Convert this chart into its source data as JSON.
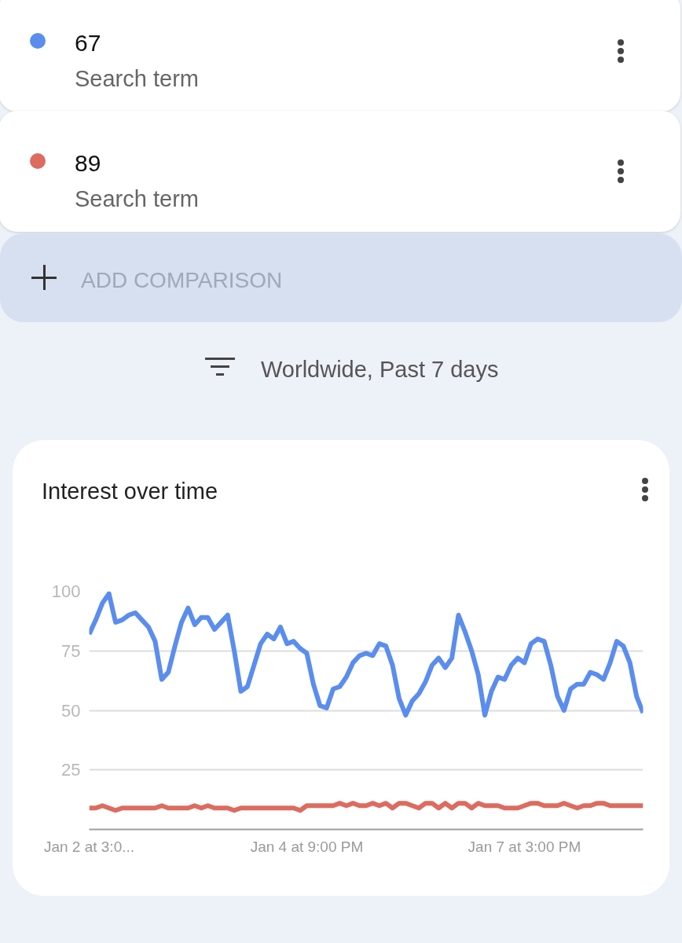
{
  "chart_data": {
    "type": "line",
    "title": "Interest over time",
    "subtitle": "Worldwide, Past 7 days",
    "annotations": [
      "Search term",
      "Search term",
      "ADD COMPARISON"
    ],
    "categories": [
      "Jan 2 at 3:0...",
      null,
      null,
      null,
      null,
      null,
      null,
      null,
      null,
      null,
      null,
      null,
      null,
      null,
      null,
      null,
      null,
      null,
      null,
      null,
      null,
      null,
      null,
      null,
      null,
      null,
      null,
      null,
      null,
      null,
      null,
      null,
      null,
      "Jan 4 at 9:00 PM",
      null,
      null,
      null,
      null,
      null,
      null,
      null,
      null,
      null,
      null,
      null,
      null,
      null,
      null,
      null,
      null,
      null,
      null,
      null,
      null,
      null,
      null,
      null,
      null,
      null,
      null,
      null,
      null,
      null,
      null,
      null,
      null,
      "Jan 7 at 3:00 PM",
      null,
      null,
      null,
      null,
      null,
      null,
      null,
      null,
      null,
      null,
      null,
      null,
      null,
      null,
      null,
      null,
      null,
      null
    ],
    "ylim": [
      0,
      100
    ],
    "yticks": [
      25,
      50,
      75,
      100
    ],
    "grid": "y",
    "legend": "top",
    "marker": "none",
    "line_style": "solid",
    "series": [
      {
        "name": "67",
        "color": "#5a8dee",
        "values": [
          82,
          88,
          95,
          99,
          87,
          88,
          90,
          91,
          88,
          85,
          79,
          63,
          66,
          77,
          87,
          93,
          86,
          89,
          89,
          84,
          87,
          90,
          75,
          58,
          60,
          69,
          78,
          82,
          80,
          85,
          78,
          79,
          76,
          74,
          61,
          52,
          51,
          59,
          60,
          64,
          70,
          73,
          74,
          73,
          78,
          77,
          69,
          55,
          48,
          54,
          57,
          62,
          69,
          72,
          68,
          72,
          90,
          83,
          75,
          65,
          48,
          58,
          64,
          63,
          69,
          72,
          70,
          78,
          80,
          79,
          69,
          56,
          50,
          59,
          61,
          61,
          66,
          65,
          63,
          70,
          79,
          77,
          70,
          56,
          49
        ]
      },
      {
        "name": "89",
        "color": "#dd6b5f",
        "values": [
          9,
          9,
          10,
          9,
          8,
          9,
          9,
          9,
          9,
          9,
          9,
          10,
          9,
          9,
          9,
          9,
          10,
          9,
          10,
          9,
          9,
          9,
          8,
          9,
          9,
          9,
          9,
          9,
          9,
          9,
          9,
          9,
          8,
          10,
          10,
          10,
          10,
          10,
          11,
          10,
          11,
          10,
          10,
          11,
          10,
          11,
          9,
          11,
          11,
          10,
          9,
          11,
          11,
          9,
          11,
          9,
          11,
          11,
          9,
          11,
          10,
          10,
          10,
          9,
          9,
          9,
          10,
          11,
          11,
          10,
          10,
          10,
          11,
          10,
          9,
          10,
          10,
          11,
          11,
          10,
          10,
          10,
          10,
          10,
          10
        ]
      }
    ]
  }
}
